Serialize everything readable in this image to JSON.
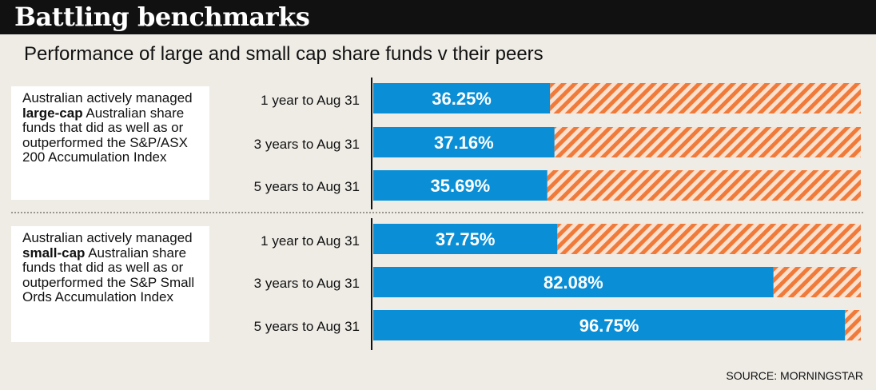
{
  "title": "Battling benchmarks",
  "subtitle": "Performance of large and small cap share funds v their peers",
  "source": "SOURCE: MORNINGSTAR",
  "colors": {
    "bar": "#0a8fd6",
    "remainder": "#f07a3a",
    "stripe_bg": "#fbe1cf"
  },
  "chart_data": {
    "type": "bar",
    "orientation": "horizontal",
    "stacked_to": 100,
    "title": "Battling benchmarks",
    "subtitle": "Performance of large and small cap share funds v their peers",
    "value_suffix": "%",
    "groups": [
      {
        "description_parts": [
          "Australian actively managed ",
          "large-cap",
          " Australian share funds that did as well as or outperformed the S&P/ASX 200 Accumulation Index"
        ],
        "categories": [
          "1 year to Aug 31",
          "3 years to Aug 31",
          "5 years to Aug 31"
        ],
        "values": [
          36.25,
          37.16,
          35.69
        ]
      },
      {
        "description_parts": [
          "Australian actively managed ",
          "small-cap",
          " Australian share funds that did as well as or outperformed the S&P Small Ords Accumulation Index"
        ],
        "categories": [
          "1 year to Aug 31",
          "3 years to Aug 31",
          "5 years to Aug 31"
        ],
        "values": [
          37.75,
          82.08,
          96.75
        ]
      }
    ]
  }
}
